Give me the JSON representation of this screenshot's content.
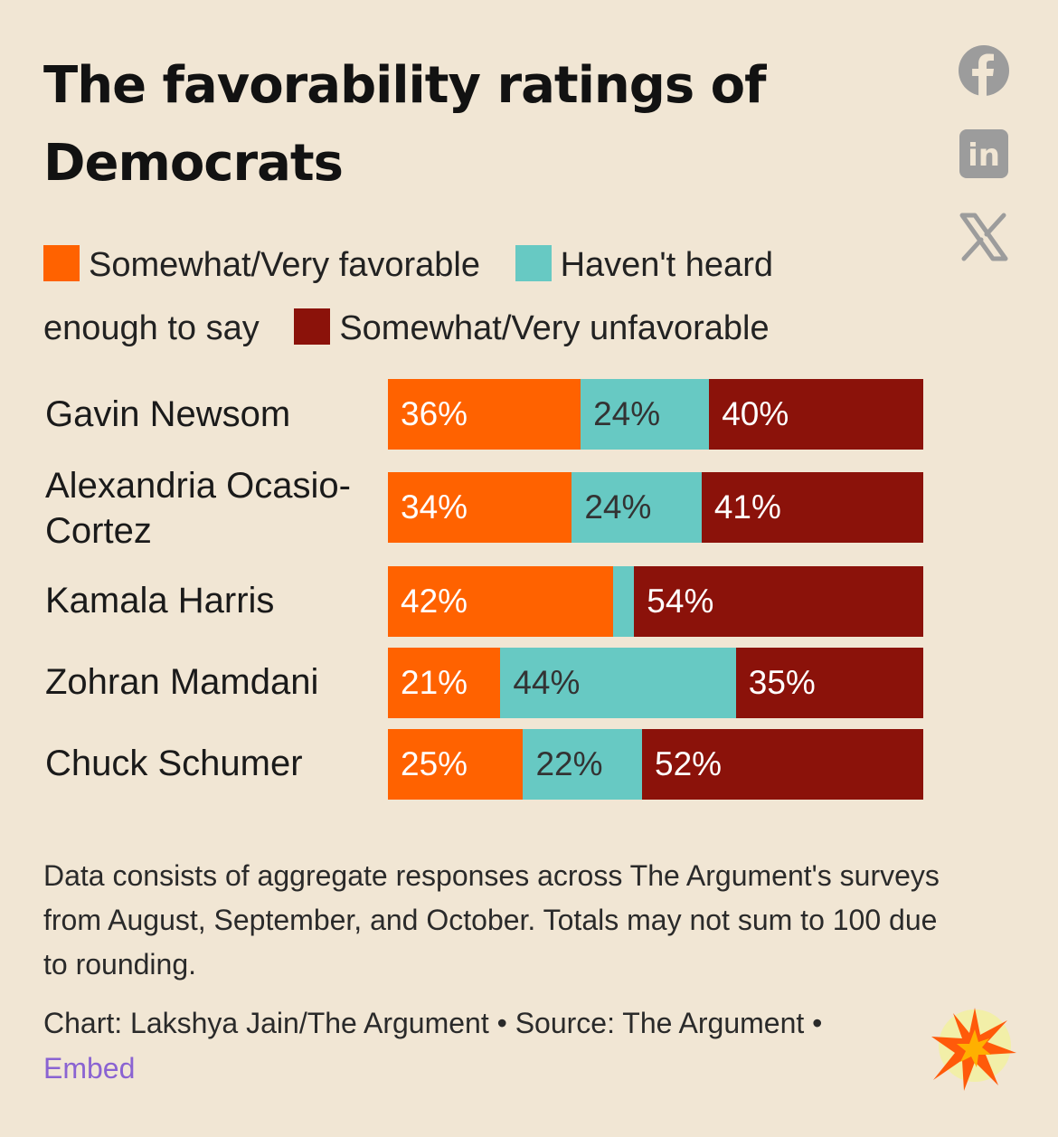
{
  "title": "The favorability ratings of Democrats",
  "share": {
    "icons": [
      "facebook-icon",
      "linkedin-icon",
      "x-icon"
    ],
    "linkedin_text": "in",
    "x_text": "X"
  },
  "colors": {
    "favorable": "#ff6200",
    "not_heard": "#67c9c3",
    "unfavorable": "#8b120a",
    "background": "#f1e6d4",
    "link": "#8a63d2"
  },
  "legend": {
    "favorable": "Somewhat/Very favorable",
    "not_heard_part1": "Haven't heard",
    "not_heard_part2": "enough to say",
    "unfavorable": "Somewhat/Very unfavorable"
  },
  "chart_data": {
    "type": "bar",
    "orientation": "horizontal",
    "stacked": true,
    "categories": [
      "Gavin Newsom",
      "Alexandria Ocasio-Cortez",
      "Kamala Harris",
      "Zohran Mamdani",
      "Chuck Schumer"
    ],
    "series": [
      {
        "name": "Somewhat/Very favorable",
        "values": [
          36,
          34,
          42,
          21,
          25
        ],
        "labels": [
          "36%",
          "34%",
          "42%",
          "21%",
          "25%"
        ]
      },
      {
        "name": "Haven't heard enough to say",
        "values": [
          24,
          24,
          4,
          44,
          22
        ],
        "labels": [
          "24%",
          "24%",
          "",
          "44%",
          "22%"
        ]
      },
      {
        "name": "Somewhat/Very unfavorable",
        "values": [
          40,
          41,
          54,
          35,
          52
        ],
        "labels": [
          "40%",
          "41%",
          "54%",
          "35%",
          "52%"
        ]
      }
    ],
    "xlim": [
      0,
      100
    ],
    "grid": false,
    "legend_position": "top"
  },
  "footer": {
    "note": "Data consists of aggregate responses across The Argument's surveys from August, September, and October. Totals may not sum to 100 due to rounding.",
    "credit_text": "Chart: Lakshya Jain/The Argument • Source: The Argument • ",
    "embed_label": "Embed"
  }
}
